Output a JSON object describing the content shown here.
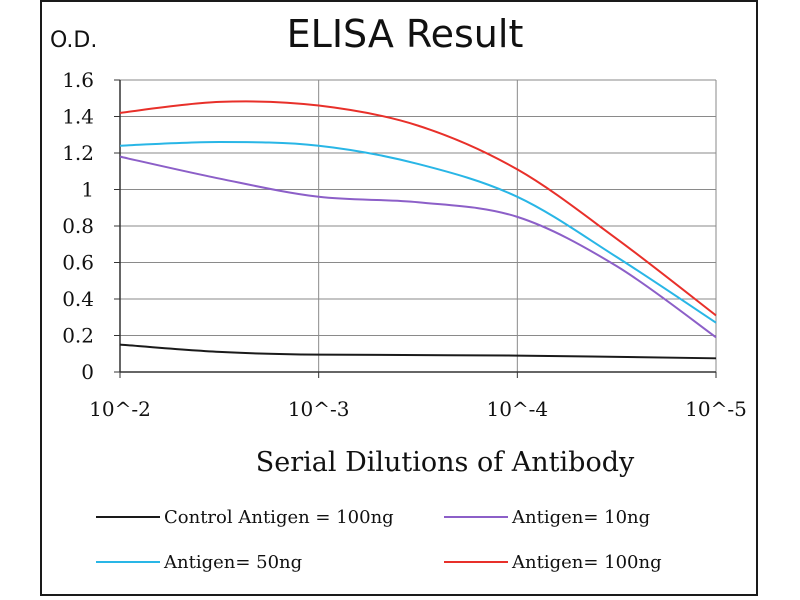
{
  "chart_data": {
    "type": "line",
    "title": "ELISA Result",
    "ylabel": "O.D.",
    "xlabel": "Serial  Dilutions  of Antibody",
    "x": [
      0,
      1,
      2,
      3
    ],
    "x_tick_labels": [
      "10^-2",
      "10^-3",
      "10^-4",
      "10^-5"
    ],
    "y_ticks": [
      0,
      0.2,
      0.4,
      0.6,
      0.8,
      1,
      1.2,
      1.4,
      1.6
    ],
    "y_tick_labels": [
      "0",
      "0.2",
      "0.4",
      "0.6",
      "0.8",
      "1",
      "1.2",
      "1.4",
      "1.6"
    ],
    "ylim": [
      0,
      1.6
    ],
    "grid": true,
    "legend_position": "bottom",
    "series": [
      {
        "name": "Control Antigen = 100ng",
        "color": "#1a1a1a",
        "points": [
          [
            0,
            0.15
          ],
          [
            0.5,
            0.11
          ],
          [
            1,
            0.095
          ],
          [
            2,
            0.09
          ],
          [
            3,
            0.075
          ]
        ]
      },
      {
        "name": "Antigen= 10ng",
        "color": "#8c5fc8",
        "points": [
          [
            0,
            1.18
          ],
          [
            0.5,
            1.06
          ],
          [
            1,
            0.96
          ],
          [
            1.5,
            0.93
          ],
          [
            2,
            0.85
          ],
          [
            2.5,
            0.58
          ],
          [
            3,
            0.19
          ]
        ]
      },
      {
        "name": "Antigen= 50ng",
        "color": "#29b6e6",
        "points": [
          [
            0,
            1.24
          ],
          [
            0.5,
            1.26
          ],
          [
            1,
            1.24
          ],
          [
            1.5,
            1.14
          ],
          [
            2,
            0.96
          ],
          [
            2.5,
            0.63
          ],
          [
            3,
            0.27
          ]
        ]
      },
      {
        "name": "Antigen= 100ng",
        "color": "#e8302a",
        "points": [
          [
            0,
            1.42
          ],
          [
            0.5,
            1.48
          ],
          [
            1,
            1.46
          ],
          [
            1.5,
            1.35
          ],
          [
            2,
            1.11
          ],
          [
            2.5,
            0.73
          ],
          [
            3,
            0.31
          ]
        ]
      }
    ]
  }
}
